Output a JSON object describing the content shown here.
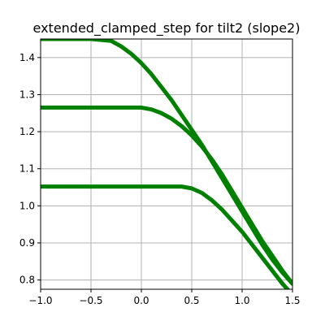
{
  "chart_data": {
    "type": "line",
    "title": "extended_clamped_step for tilt2 (slope2)",
    "xlabel": "",
    "ylabel": "",
    "xlim": [
      -1.0,
      1.5
    ],
    "ylim": [
      0.775,
      1.45
    ],
    "grid": true,
    "x_ticks": [
      -1.0,
      -0.5,
      0.0,
      0.5,
      1.0,
      1.5
    ],
    "x_tick_labels": [
      "−1.0",
      "−0.5",
      "0.0",
      "0.5",
      "1.0",
      "1.5"
    ],
    "y_ticks": [
      0.8,
      0.9,
      1.0,
      1.1,
      1.2,
      1.3,
      1.4
    ],
    "y_tick_labels": [
      "0.8",
      "0.9",
      "1.0",
      "1.1",
      "1.2",
      "1.3",
      "1.4"
    ],
    "line_color": "#008000",
    "series": [
      {
        "x": [
          -1.0,
          -0.5,
          -0.3,
          -0.2,
          -0.1,
          0.0,
          0.1,
          0.2,
          0.3,
          0.4,
          0.5,
          0.6,
          0.7,
          0.8,
          0.9,
          1.0,
          1.1,
          1.2,
          1.3,
          1.4,
          1.5
        ],
        "values": [
          1.45,
          1.45,
          1.445,
          1.43,
          1.41,
          1.385,
          1.355,
          1.32,
          1.285,
          1.245,
          1.205,
          1.165,
          1.12,
          1.075,
          1.03,
          0.985,
          0.94,
          0.895,
          0.855,
          0.82,
          0.79
        ]
      },
      {
        "x": [
          -1.0,
          -0.5,
          0.0,
          0.1,
          0.2,
          0.3,
          0.4,
          0.5,
          0.6,
          0.7,
          0.8,
          0.9,
          1.0,
          1.1,
          1.2,
          1.3,
          1.4,
          1.5
        ],
        "values": [
          1.265,
          1.265,
          1.265,
          1.26,
          1.25,
          1.235,
          1.215,
          1.19,
          1.16,
          1.125,
          1.085,
          1.04,
          0.995,
          0.95,
          0.905,
          0.865,
          0.825,
          0.79
        ]
      },
      {
        "x": [
          -1.0,
          -0.5,
          0.0,
          0.4,
          0.5,
          0.6,
          0.7,
          0.8,
          0.9,
          1.0,
          1.1,
          1.2,
          1.3,
          1.4,
          1.5
        ],
        "values": [
          1.052,
          1.052,
          1.052,
          1.052,
          1.047,
          1.035,
          1.015,
          0.99,
          0.96,
          0.93,
          0.895,
          0.86,
          0.825,
          0.79,
          0.76
        ]
      }
    ]
  }
}
